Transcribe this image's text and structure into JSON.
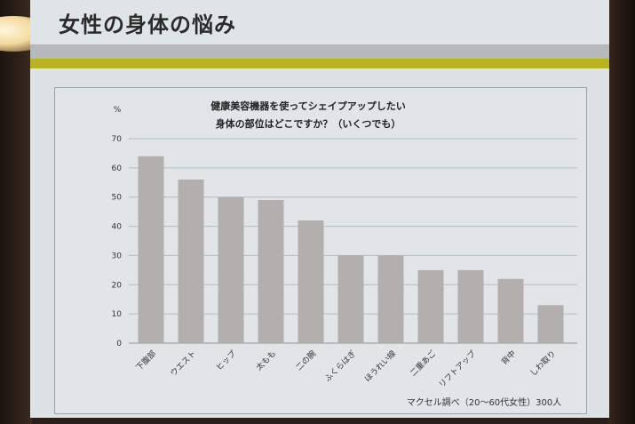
{
  "slide": {
    "title": "女性の身体の悩み",
    "colors": {
      "band_gray": "#b7b9ba",
      "band_yellow": "#b9b226",
      "bar": "#b3afaf"
    }
  },
  "chart_data": {
    "type": "bar",
    "title_lines": [
      "健康美容機器を使ってシェイプアップしたい",
      "身体の部位はどこですか？（いくつでも）"
    ],
    "ylabel": "%",
    "ylim": [
      0,
      70
    ],
    "yticks": [
      0,
      10,
      20,
      30,
      40,
      50,
      60,
      70
    ],
    "grid": true,
    "categories": [
      "下腹部",
      "ウエスト",
      "ヒップ",
      "太もも",
      "二の腕",
      "ふくらはぎ",
      "ほうれい線",
      "二重あご",
      "リフトアップ",
      "背中",
      "しわ取り"
    ],
    "values": [
      64,
      56,
      50,
      49,
      42,
      30,
      30,
      25,
      25,
      22,
      13
    ],
    "source": "マクセル調べ（20～60代女性）300人"
  }
}
